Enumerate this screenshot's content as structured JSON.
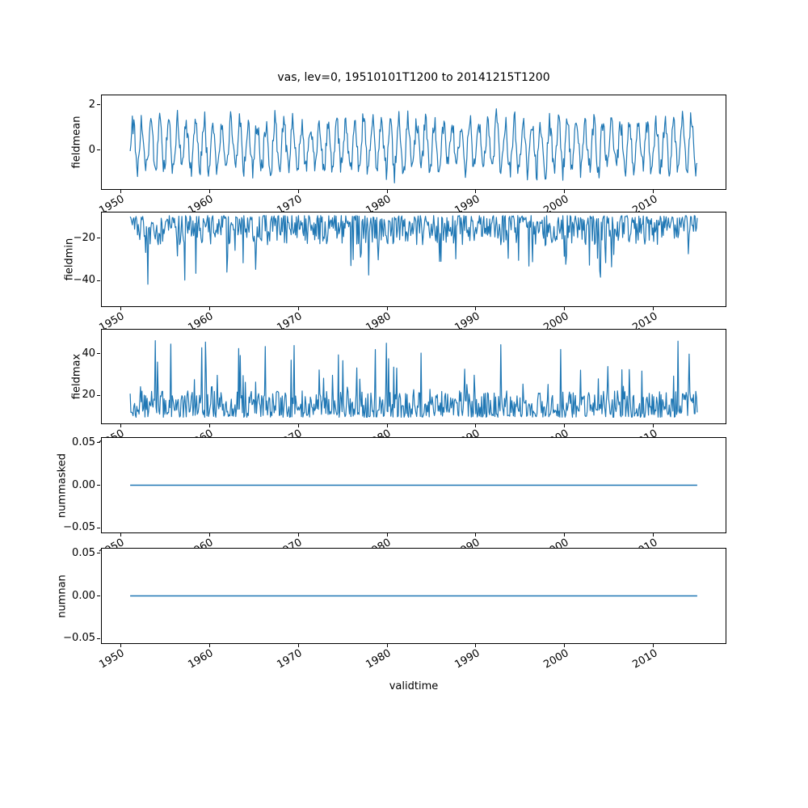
{
  "title": "vas, lev=0, 19510101T1200 to 20141215T1200",
  "accent_color": "#1f77b4",
  "xaxis": {
    "label": "validtime",
    "lim": [
      1947.8,
      2018.2
    ],
    "ticks": [
      {
        "v": 1950,
        "label": "1950"
      },
      {
        "v": 1960,
        "label": "1960"
      },
      {
        "v": 1970,
        "label": "1970"
      },
      {
        "v": 1980,
        "label": "1980"
      },
      {
        "v": 1990,
        "label": "1990"
      },
      {
        "v": 2000,
        "label": "2000"
      },
      {
        "v": 2010,
        "label": "2010"
      }
    ],
    "tick_rotation_deg": 30
  },
  "chart_data": [
    {
      "type": "line",
      "name": "fieldmean",
      "ylabel": "fieldmean",
      "x_start": 1951.0,
      "x_end": 2014.96,
      "points_per_year": 12,
      "ylim": [
        -1.75,
        2.45
      ],
      "yticks": [
        {
          "v": 2,
          "label": "2"
        },
        {
          "v": 0,
          "label": "0"
        }
      ],
      "summary": "seasonal oscillation around ~0.2, troughs near -1.7, peaks near 2.4",
      "gen": {
        "kind": "seasonal",
        "offset": 0.2,
        "amplitude": 1.05,
        "amp_jitter": 0.5,
        "noise": 0.9,
        "seed": 101
      }
    },
    {
      "type": "line",
      "name": "fieldmin",
      "ylabel": "fieldmin",
      "x_start": 1951.0,
      "x_end": 2014.96,
      "points_per_year": 12,
      "ylim": [
        -52.5,
        -7.5
      ],
      "yticks": [
        {
          "v": -20,
          "label": "−20"
        },
        {
          "v": -40,
          "label": "−40"
        }
      ],
      "summary": "dense noisy band between about -8 and -25 with downward spikes reaching about -50",
      "gen": {
        "kind": "spiky",
        "base": -9,
        "spread": 14,
        "skew": 1.6,
        "spike_prob": 0.09,
        "spike_amp": 24,
        "direction": -1,
        "seed": 202
      }
    },
    {
      "type": "line",
      "name": "fieldmax",
      "ylabel": "fieldmax",
      "x_start": 1951.0,
      "x_end": 2014.96,
      "points_per_year": 12,
      "ylim": [
        6,
        52
      ],
      "yticks": [
        {
          "v": 40,
          "label": "40"
        },
        {
          "v": 20,
          "label": "20"
        }
      ],
      "summary": "dense noisy band between about 9 and 25 with upward spikes reaching about 55",
      "gen": {
        "kind": "spiky",
        "base": 9,
        "spread": 13,
        "skew": 1.6,
        "spike_prob": 0.09,
        "spike_amp": 28,
        "direction": 1,
        "seed": 303
      }
    },
    {
      "type": "line",
      "name": "nummasked",
      "ylabel": "nummasked",
      "x_start": 1951.0,
      "x_end": 2014.96,
      "points_per_year": 12,
      "ylim": [
        -0.0565,
        0.0565
      ],
      "yticks": [
        {
          "v": 0.05,
          "label": "0.05"
        },
        {
          "v": 0.0,
          "label": "0.00"
        },
        {
          "v": -0.05,
          "label": "−0.05"
        }
      ],
      "summary": "constant zero line",
      "gen": {
        "kind": "constant",
        "value": 0,
        "seed": 404
      }
    },
    {
      "type": "line",
      "name": "numnan",
      "ylabel": "numnan",
      "x_start": 1951.0,
      "x_end": 2014.96,
      "points_per_year": 12,
      "ylim": [
        -0.0565,
        0.0565
      ],
      "yticks": [
        {
          "v": 0.05,
          "label": "0.05"
        },
        {
          "v": 0.0,
          "label": "0.00"
        },
        {
          "v": -0.05,
          "label": "−0.05"
        }
      ],
      "summary": "constant zero line",
      "gen": {
        "kind": "constant",
        "value": 0,
        "seed": 505
      }
    }
  ]
}
